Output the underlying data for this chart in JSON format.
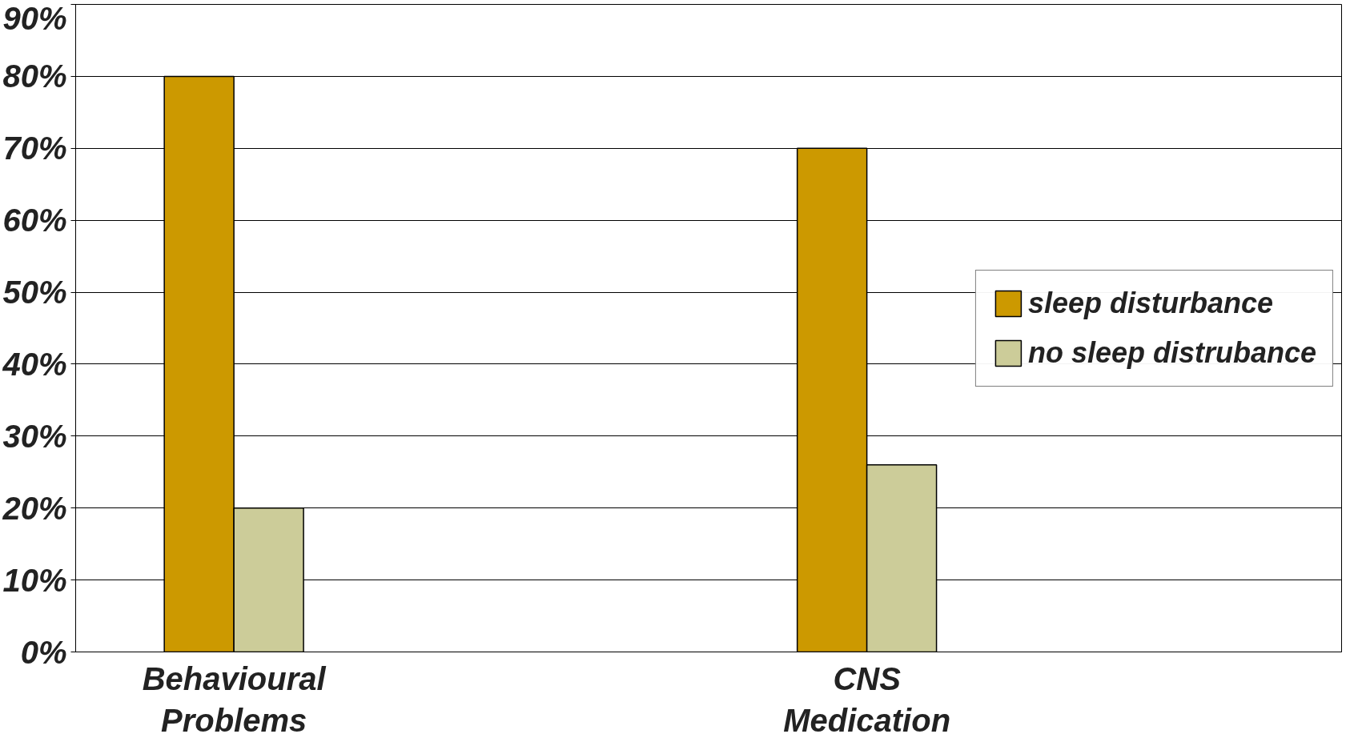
{
  "chart_data": {
    "type": "bar",
    "categories": [
      "Behavioural Problems",
      null,
      "CNS Medication",
      null
    ],
    "series": [
      {
        "name": "sleep disturbance",
        "color": "#cc9900",
        "values": [
          80,
          null,
          70,
          null
        ]
      },
      {
        "name": "no sleep distrubance",
        "color": "#cccc99",
        "values": [
          20,
          null,
          26,
          null
        ]
      }
    ],
    "ylim": [
      0,
      90
    ],
    "yticks": [
      {
        "value": 0,
        "label": "0%"
      },
      {
        "value": 10,
        "label": "10%"
      },
      {
        "value": 20,
        "label": "20%"
      },
      {
        "value": 30,
        "label": "30%"
      },
      {
        "value": 40,
        "label": "40%"
      },
      {
        "value": 50,
        "label": "50%"
      },
      {
        "value": 60,
        "label": "60%"
      },
      {
        "value": 70,
        "label": "70%"
      },
      {
        "value": 80,
        "label": "80%"
      },
      {
        "value": 90,
        "label": "90%"
      }
    ],
    "grid": "y",
    "legend": "right"
  }
}
